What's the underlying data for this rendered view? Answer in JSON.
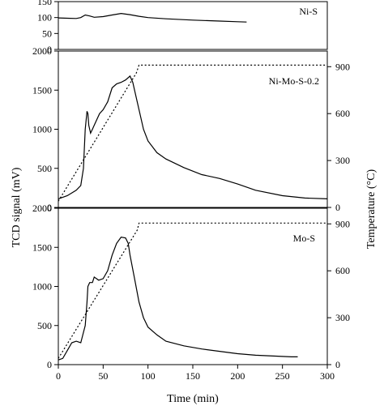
{
  "chart_data": [
    {
      "type": "line",
      "panel": "Ni-S",
      "label": "Ni-S",
      "xlim": [
        0,
        300
      ],
      "ylim": [
        0,
        150
      ],
      "yticks": [
        0,
        50,
        100,
        150
      ],
      "series": [
        {
          "name": "TCD signal",
          "x": [
            0,
            10,
            20,
            25,
            30,
            35,
            40,
            50,
            60,
            70,
            80,
            90,
            100,
            120,
            150,
            180,
            200,
            210
          ],
          "y": [
            99,
            98,
            97,
            100,
            108,
            105,
            101,
            103,
            108,
            113,
            109,
            104,
            100,
            96,
            92,
            89,
            87,
            86
          ]
        }
      ]
    },
    {
      "type": "line",
      "panel": "Ni-Mo-S-0.2",
      "label": "Ni-Mo-S-0.2",
      "xlim": [
        0,
        300
      ],
      "ylim": [
        0,
        2000
      ],
      "yticks": [
        0,
        500,
        1000,
        1500,
        2000
      ],
      "y2lim": [
        0,
        1000
      ],
      "y2ticks": [
        0,
        300,
        600,
        900
      ],
      "series": [
        {
          "name": "TCD signal",
          "x": [
            0,
            10,
            20,
            25,
            28,
            30,
            32,
            33,
            34,
            36,
            38,
            42,
            46,
            50,
            55,
            60,
            65,
            70,
            75,
            80,
            83,
            86,
            90,
            95,
            100,
            110,
            120,
            140,
            160,
            180,
            200,
            220,
            250,
            275,
            300
          ],
          "y": [
            110,
            150,
            220,
            280,
            500,
            1000,
            1230,
            1200,
            1050,
            950,
            1000,
            1100,
            1200,
            1250,
            1350,
            1530,
            1580,
            1600,
            1630,
            1680,
            1600,
            1450,
            1250,
            1000,
            850,
            700,
            620,
            510,
            420,
            370,
            300,
            220,
            150,
            120,
            110
          ],
          "axis": "left"
        },
        {
          "name": "Temperature",
          "x": [
            0,
            87,
            90,
            300
          ],
          "y": [
            40,
            860,
            910,
            910
          ],
          "axis": "right"
        }
      ]
    },
    {
      "type": "line",
      "panel": "Mo-S",
      "label": "Mo-S",
      "xlim": [
        0,
        300
      ],
      "ylim": [
        0,
        2000
      ],
      "yticks": [
        0,
        500,
        1000,
        1500,
        2000
      ],
      "y2lim": [
        0,
        1000
      ],
      "y2ticks": [
        0,
        300,
        600,
        900
      ],
      "series": [
        {
          "name": "TCD signal",
          "x": [
            0,
            5,
            10,
            15,
            20,
            25,
            30,
            32,
            33,
            35,
            38,
            40,
            45,
            50,
            55,
            60,
            65,
            70,
            75,
            78,
            80,
            85,
            90,
            95,
            100,
            110,
            120,
            140,
            160,
            180,
            200,
            220,
            240,
            260,
            267
          ],
          "y": [
            60,
            80,
            180,
            280,
            300,
            280,
            500,
            800,
            1000,
            1050,
            1050,
            1120,
            1080,
            1100,
            1200,
            1400,
            1550,
            1630,
            1620,
            1550,
            1400,
            1100,
            800,
            600,
            480,
            380,
            300,
            240,
            200,
            170,
            140,
            120,
            110,
            100,
            100
          ],
          "axis": "left"
        },
        {
          "name": "Temperature",
          "x": [
            0,
            88,
            90,
            300
          ],
          "y": [
            40,
            860,
            905,
            905
          ],
          "axis": "right"
        }
      ]
    }
  ],
  "axes": {
    "xlabel": "Time (min)",
    "ylabel": "TCD signal (mV)",
    "y2label": "Temperature (°C)",
    "xticks": [
      0,
      50,
      100,
      150,
      200,
      250,
      300
    ]
  }
}
